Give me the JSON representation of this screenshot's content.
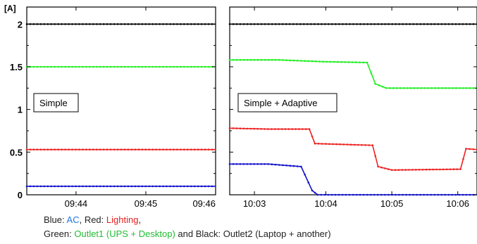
{
  "chart_data": [
    {
      "type": "line",
      "panel_label": "Simple",
      "y_unit_label": "[A]",
      "ylim": [
        0,
        2.2
      ],
      "y_ticks": [
        "0",
        "0.5",
        "1",
        "1.5",
        "2"
      ],
      "y_tick_values": [
        0,
        0.5,
        1,
        1.5,
        2
      ],
      "xlim": [
        0,
        2.3
      ],
      "x_ticks": [
        "09:44",
        "09:45",
        "09:46"
      ],
      "x_tick_values": [
        0.6,
        1.45,
        2.3
      ],
      "series": [
        {
          "color": "#000000",
          "x": [
            0,
            2.3
          ],
          "y": [
            2.0,
            2.0
          ]
        },
        {
          "color": "#22ee22",
          "x": [
            0,
            2.3
          ],
          "y": [
            1.5,
            1.5
          ]
        },
        {
          "color": "#ee2222",
          "x": [
            0,
            2.3
          ],
          "y": [
            0.53,
            0.53
          ]
        },
        {
          "color": "#1111cc",
          "x": [
            0,
            2.3
          ],
          "y": [
            0.1,
            0.1
          ]
        }
      ]
    },
    {
      "type": "line",
      "panel_label": "Simple + Adaptive",
      "ylim": [
        0,
        2.2
      ],
      "xlim": [
        0,
        4.5
      ],
      "x_ticks": [
        "10:03",
        "10:04",
        "10:05",
        "10:06"
      ],
      "x_tick_values": [
        0.45,
        1.75,
        2.95,
        4.15
      ],
      "series": [
        {
          "color": "#000000",
          "x": [
            0,
            4.5
          ],
          "y": [
            2.0,
            2.0
          ]
        },
        {
          "color": "#22ee22",
          "x": [
            0,
            0.9,
            1.7,
            2.5,
            2.65,
            2.85,
            4.5
          ],
          "y": [
            1.58,
            1.58,
            1.56,
            1.55,
            1.3,
            1.25,
            1.25
          ]
        },
        {
          "color": "#ee2222",
          "x": [
            0,
            0.7,
            1.45,
            1.55,
            2.6,
            2.7,
            2.95,
            4.2,
            4.3,
            4.5
          ],
          "y": [
            0.78,
            0.77,
            0.77,
            0.6,
            0.58,
            0.33,
            0.29,
            0.3,
            0.54,
            0.53
          ]
        },
        {
          "color": "#1111cc",
          "x": [
            0,
            0.7,
            1.3,
            1.5,
            1.6,
            4.5
          ],
          "y": [
            0.36,
            0.36,
            0.33,
            0.05,
            0.0,
            0.0
          ]
        }
      ]
    }
  ],
  "caption": {
    "blue_prefix": "Blue: ",
    "ac": "AC",
    "red_prefix": ", Red: ",
    "lighting": "Lighting",
    "line1_end": ",",
    "green_prefix": "Green: ",
    "outlet1": "Outlet1 (UPS + Desktop)",
    "line2_rest": " and Black: Outlet2 (Laptop + another)"
  }
}
